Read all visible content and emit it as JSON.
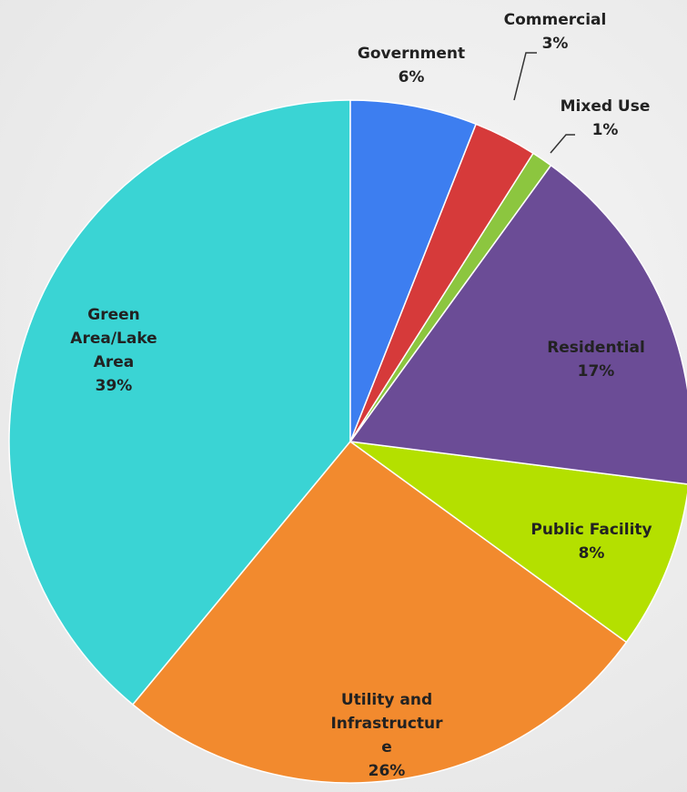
{
  "chart_data": {
    "type": "pie",
    "categories": [
      "Government",
      "Commercial",
      "Mixed Use",
      "Residential",
      "Public Facility",
      "Utility and Infrastructure",
      "Green Area/Lake Area"
    ],
    "values": [
      6,
      3,
      1,
      17,
      8,
      26,
      39
    ],
    "value_labels": [
      "6%",
      "3%",
      "1%",
      "17%",
      "8%",
      "26%",
      "39%"
    ],
    "colors": [
      "#3d7ef0",
      "#d63a3a",
      "#8cc63f",
      "#6b4c96",
      "#b4e000",
      "#f28a2e",
      "#3ad4d4"
    ]
  }
}
